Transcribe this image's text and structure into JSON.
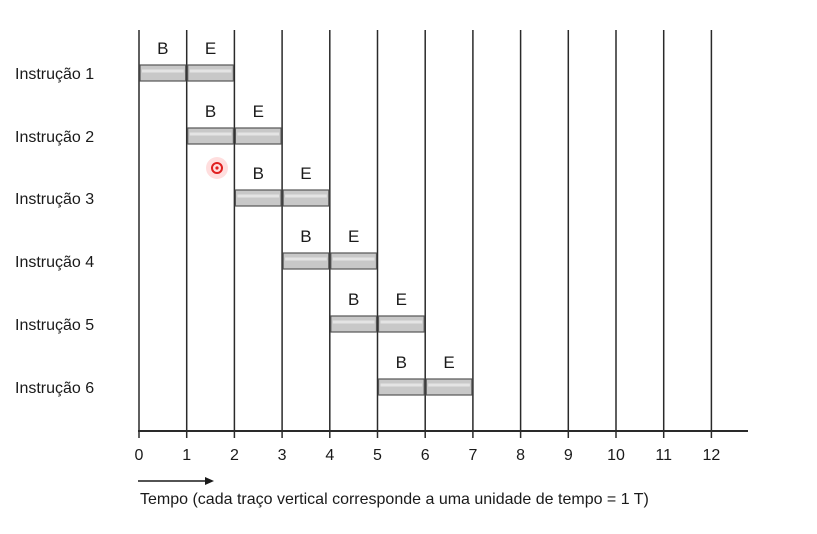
{
  "chart_data": {
    "type": "gantt",
    "time_ticks": [
      "0",
      "1",
      "2",
      "3",
      "4",
      "5",
      "6",
      "7",
      "8",
      "9",
      "10",
      "11",
      "12"
    ],
    "xlim": [
      0,
      12
    ],
    "axis_caption": "Tempo (cada traço vertical corresponde a uma unidade de tempo = 1 T)",
    "grid": true,
    "instructions": [
      {
        "label": "Instrução 1",
        "phases": [
          {
            "name": "B",
            "start": 0,
            "end": 1
          },
          {
            "name": "E",
            "start": 1,
            "end": 2
          }
        ]
      },
      {
        "label": "Instrução 2",
        "phases": [
          {
            "name": "B",
            "start": 1,
            "end": 2
          },
          {
            "name": "E",
            "start": 2,
            "end": 3
          }
        ]
      },
      {
        "label": "Instrução 3",
        "phases": [
          {
            "name": "B",
            "start": 2,
            "end": 3
          },
          {
            "name": "E",
            "start": 3,
            "end": 4
          }
        ]
      },
      {
        "label": "Instrução 4",
        "phases": [
          {
            "name": "B",
            "start": 3,
            "end": 4
          },
          {
            "name": "E",
            "start": 4,
            "end": 5
          }
        ]
      },
      {
        "label": "Instrução 5",
        "phases": [
          {
            "name": "B",
            "start": 4,
            "end": 5
          },
          {
            "name": "E",
            "start": 5,
            "end": 6
          }
        ]
      },
      {
        "label": "Instrução 6",
        "phases": [
          {
            "name": "B",
            "start": 5,
            "end": 6
          },
          {
            "name": "E",
            "start": 6,
            "end": 7
          }
        ]
      }
    ]
  },
  "colors": {
    "bar_fill": "#c8c8c8",
    "bar_stroke": "#555555",
    "grid_line": "#2a2a2a",
    "cursor_dot": "#e02020"
  }
}
